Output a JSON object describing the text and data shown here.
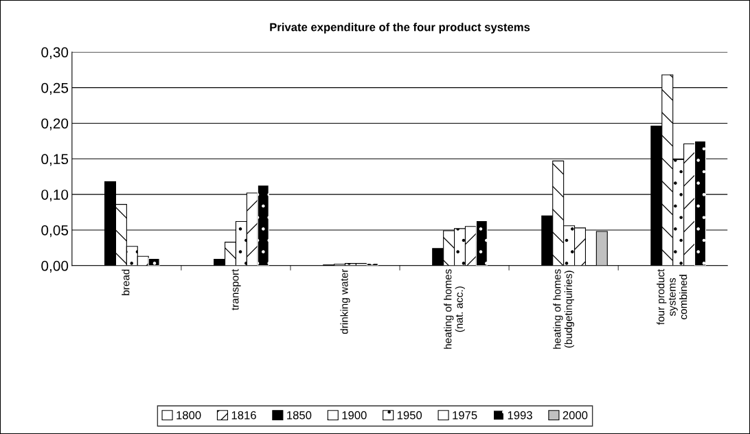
{
  "chart_data": {
    "type": "bar",
    "title": "Private expenditure of the four product systems",
    "categories": [
      "bread",
      "transport",
      "drinking water",
      "heating of homes\n(nat. acc.)",
      "heating of homes\n(budgetinquiries)",
      "four product\nsystems\ncombined"
    ],
    "series": [
      {
        "name": "1800",
        "color": "#ffffff",
        "values": [
          null,
          null,
          null,
          null,
          null,
          null
        ]
      },
      {
        "name": "1816",
        "color": "#000000",
        "values": [
          null,
          null,
          null,
          null,
          null,
          null
        ]
      },
      {
        "name": "1850",
        "color": "#000000",
        "values": [
          0.118,
          0.009,
          0.001,
          0.024,
          0.07,
          0.196
        ]
      },
      {
        "name": "1900",
        "color": "#000000",
        "values": [
          0.086,
          0.033,
          0.002,
          0.049,
          0.147,
          0.268
        ]
      },
      {
        "name": "1950",
        "color": "#000000",
        "values": [
          0.027,
          0.062,
          0.003,
          0.052,
          0.056,
          0.149
        ]
      },
      {
        "name": "1975",
        "color": "#000000",
        "values": [
          0.013,
          0.102,
          0.003,
          0.055,
          0.053,
          0.171
        ]
      },
      {
        "name": "1993",
        "color": "#ffffff",
        "values": [
          0.01,
          0.113,
          0.003,
          0.063,
          null,
          0.175
        ]
      },
      {
        "name": "2000",
        "color": "#c0c0c0",
        "values": [
          null,
          null,
          null,
          null,
          0.048,
          null
        ]
      }
    ],
    "ylim": [
      0,
      0.3
    ],
    "yticks": [
      {
        "value": 0,
        "label": "0,00"
      },
      {
        "value": 0.05,
        "label": "0,05"
      },
      {
        "value": 0.1,
        "label": "0,10"
      },
      {
        "value": 0.15,
        "label": "0,15"
      },
      {
        "value": 0.2,
        "label": "0,20"
      },
      {
        "value": 0.25,
        "label": "0,25"
      },
      {
        "value": 0.3,
        "label": "0,30"
      }
    ],
    "grid": "y",
    "legend": "bottom"
  }
}
